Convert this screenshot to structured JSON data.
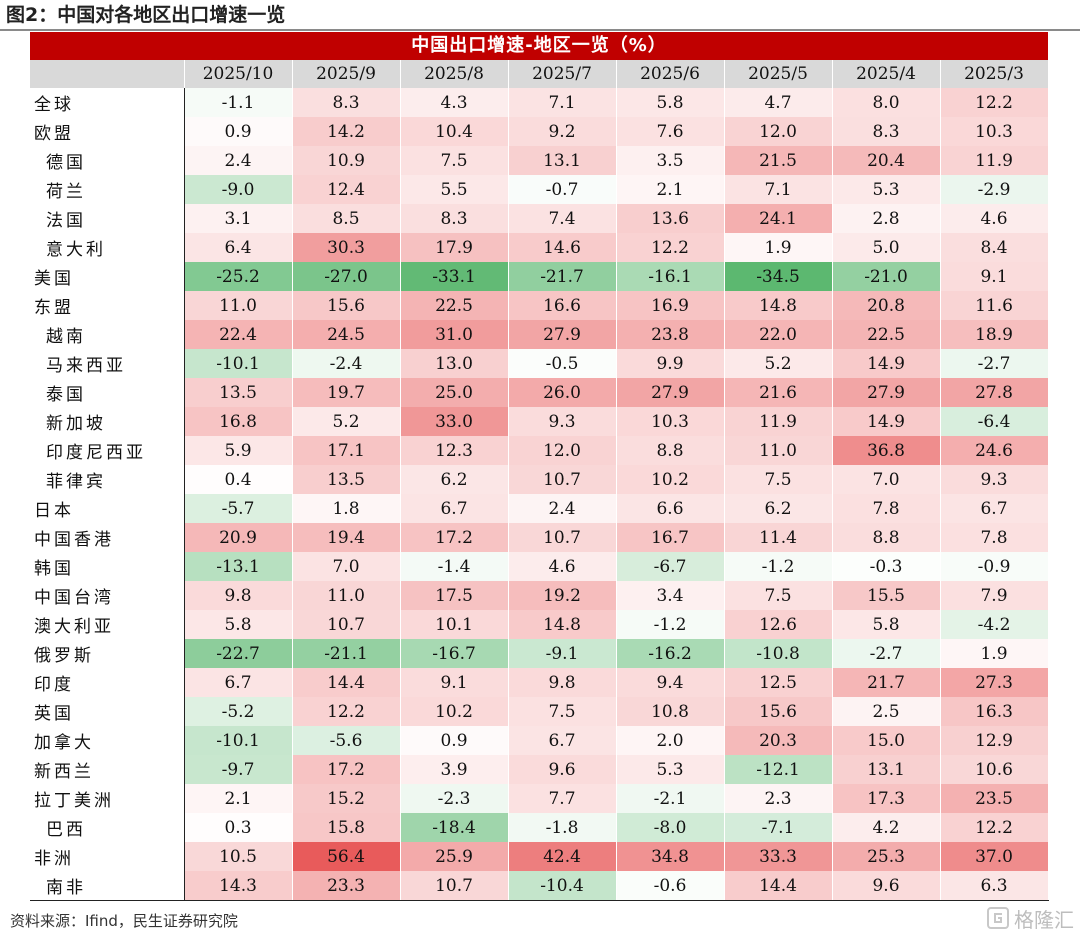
{
  "figure": {
    "title": "图2：中国对各地区出口增速一览"
  },
  "chart_data": {
    "type": "table",
    "title": "中国出口增速-地区一览（%）",
    "columns": [
      "2025/10",
      "2025/9",
      "2025/8",
      "2025/7",
      "2025/6",
      "2025/5",
      "2025/4",
      "2025/3"
    ],
    "rows": [
      {
        "label": "全球",
        "indent": false,
        "values": [
          -1.1,
          8.3,
          4.3,
          7.1,
          5.8,
          4.7,
          8.0,
          12.2
        ]
      },
      {
        "label": "欧盟",
        "indent": false,
        "values": [
          0.9,
          14.2,
          10.4,
          9.2,
          7.6,
          12.0,
          8.3,
          10.3
        ]
      },
      {
        "label": "德国",
        "indent": true,
        "values": [
          2.4,
          10.9,
          7.5,
          13.1,
          3.5,
          21.5,
          20.4,
          11.9
        ]
      },
      {
        "label": "荷兰",
        "indent": true,
        "values": [
          -9.0,
          12.4,
          5.5,
          -0.7,
          2.1,
          7.1,
          5.3,
          -2.9
        ]
      },
      {
        "label": "法国",
        "indent": true,
        "values": [
          3.1,
          8.5,
          8.3,
          7.4,
          13.6,
          24.1,
          2.8,
          4.6
        ]
      },
      {
        "label": "意大利",
        "indent": true,
        "values": [
          6.4,
          30.3,
          17.9,
          14.6,
          12.2,
          1.9,
          5.0,
          8.4
        ]
      },
      {
        "label": "美国",
        "indent": false,
        "values": [
          -25.2,
          -27.0,
          -33.1,
          -21.7,
          -16.1,
          -34.5,
          -21.0,
          9.1
        ]
      },
      {
        "label": "东盟",
        "indent": false,
        "values": [
          11.0,
          15.6,
          22.5,
          16.6,
          16.9,
          14.8,
          20.8,
          11.6
        ]
      },
      {
        "label": "越南",
        "indent": true,
        "values": [
          22.4,
          24.5,
          31.0,
          27.9,
          23.8,
          22.0,
          22.5,
          18.9
        ]
      },
      {
        "label": "马来西亚",
        "indent": true,
        "values": [
          -10.1,
          -2.4,
          13.0,
          -0.5,
          9.9,
          5.2,
          14.9,
          -2.7
        ]
      },
      {
        "label": "泰国",
        "indent": true,
        "values": [
          13.5,
          19.7,
          25.0,
          26.0,
          27.9,
          21.6,
          27.9,
          27.8
        ]
      },
      {
        "label": "新加坡",
        "indent": true,
        "values": [
          16.8,
          5.2,
          33.0,
          9.3,
          10.3,
          11.9,
          14.9,
          -6.4
        ]
      },
      {
        "label": "印度尼西亚",
        "indent": true,
        "values": [
          5.9,
          17.1,
          12.3,
          12.0,
          8.8,
          11.0,
          36.8,
          24.6
        ]
      },
      {
        "label": "菲律宾",
        "indent": true,
        "values": [
          0.4,
          13.5,
          6.2,
          10.7,
          10.2,
          7.5,
          7.0,
          9.3
        ]
      },
      {
        "label": "日本",
        "indent": false,
        "values": [
          -5.7,
          1.8,
          6.7,
          2.4,
          6.6,
          6.2,
          7.8,
          6.7
        ]
      },
      {
        "label": "中国香港",
        "indent": false,
        "values": [
          20.9,
          19.4,
          17.2,
          10.7,
          16.7,
          11.4,
          8.8,
          7.8
        ]
      },
      {
        "label": "韩国",
        "indent": false,
        "values": [
          -13.1,
          7.0,
          -1.4,
          4.6,
          -6.7,
          -1.2,
          -0.3,
          -0.9
        ]
      },
      {
        "label": "中国台湾",
        "indent": false,
        "values": [
          9.8,
          11.0,
          17.5,
          19.2,
          3.4,
          7.5,
          15.5,
          7.9
        ]
      },
      {
        "label": "澳大利亚",
        "indent": false,
        "values": [
          5.8,
          10.7,
          10.1,
          14.8,
          -1.2,
          12.6,
          5.8,
          -4.2
        ]
      },
      {
        "label": "俄罗斯",
        "indent": false,
        "values": [
          -22.7,
          -21.1,
          -16.7,
          -9.1,
          -16.2,
          -10.8,
          -2.7,
          1.9
        ]
      },
      {
        "label": "印度",
        "indent": false,
        "values": [
          6.7,
          14.4,
          9.1,
          9.8,
          9.4,
          12.5,
          21.7,
          27.3
        ]
      },
      {
        "label": "英国",
        "indent": false,
        "values": [
          -5.2,
          12.2,
          10.2,
          7.5,
          10.8,
          15.6,
          2.5,
          16.3
        ]
      },
      {
        "label": "加拿大",
        "indent": false,
        "values": [
          -10.1,
          -5.6,
          0.9,
          6.7,
          2.0,
          20.3,
          15.0,
          12.9
        ]
      },
      {
        "label": "新西兰",
        "indent": false,
        "values": [
          -9.7,
          17.2,
          3.9,
          9.6,
          5.3,
          -12.1,
          13.1,
          10.6
        ]
      },
      {
        "label": "拉丁美洲",
        "indent": false,
        "values": [
          2.1,
          15.2,
          -2.3,
          7.7,
          -2.1,
          2.3,
          17.3,
          23.5
        ]
      },
      {
        "label": "巴西",
        "indent": true,
        "values": [
          0.3,
          15.8,
          -18.4,
          -1.8,
          -8.0,
          -7.1,
          4.2,
          12.2
        ]
      },
      {
        "label": "非洲",
        "indent": false,
        "values": [
          10.5,
          56.4,
          25.9,
          42.4,
          34.8,
          33.3,
          25.3,
          37.0
        ]
      },
      {
        "label": "南非",
        "indent": true,
        "values": [
          14.3,
          23.3,
          10.7,
          -10.4,
          -0.6,
          14.4,
          9.6,
          6.3
        ]
      }
    ],
    "color_scale": {
      "negative": "#5cb870",
      "neutral": "#ffffff",
      "positive": "#e85b5b"
    }
  },
  "footer": {
    "source": "资料来源：Ifind，民生证券研究院",
    "watermark": "格隆汇"
  }
}
